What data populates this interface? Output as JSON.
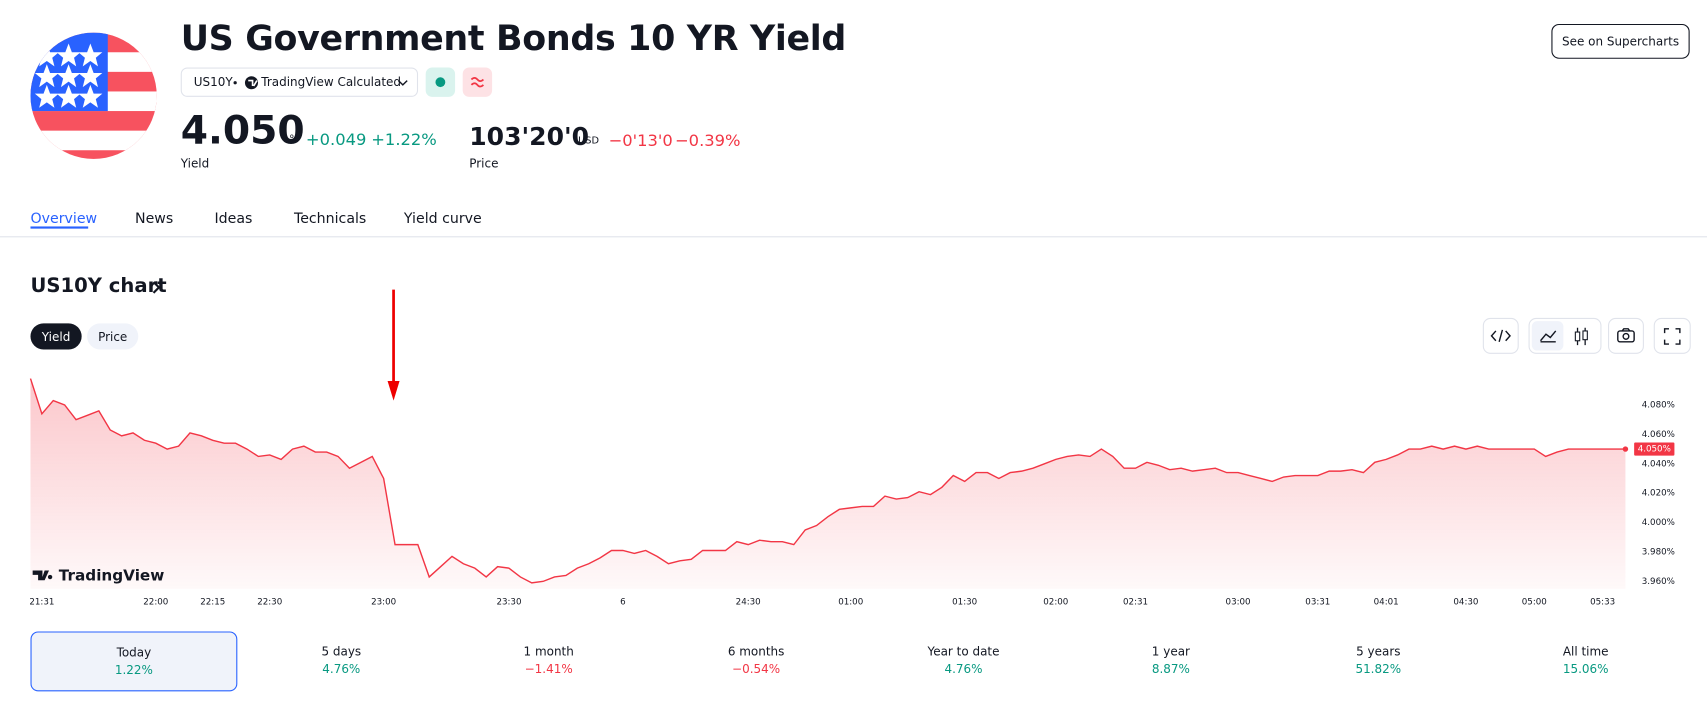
{
  "header": {
    "title": "US Government Bonds 10 YR Yield",
    "symbol": "US10Y",
    "source": "TradingView Calculated",
    "button": "See on Supercharts",
    "yield": {
      "value": "4.050",
      "unit": "%",
      "change": "+0.049",
      "change_pct": "+1.22%",
      "label": "Yield"
    },
    "price": {
      "value": "103'20'0",
      "unit": "USD",
      "change": "−0'13'0",
      "change_pct": "−0.39%",
      "label": "Price"
    }
  },
  "tabs": [
    "Overview",
    "News",
    "Ideas",
    "Technicals",
    "Yield curve"
  ],
  "chart_section": {
    "title": "US10Y chart",
    "toggles": [
      "Yield",
      "Price"
    ]
  },
  "chart_data": {
    "type": "area",
    "color": "#f23645",
    "watermark": "TradingView",
    "current_label": "4.050%",
    "categories": [
      null,
      "21:31",
      null,
      null,
      null,
      null,
      null,
      null,
      null,
      null,
      null,
      "22:00",
      null,
      null,
      null,
      null,
      "22:15",
      null,
      null,
      null,
      null,
      "22:30",
      null,
      null,
      null,
      null,
      null,
      null,
      null,
      null,
      null,
      "23:00",
      null,
      null,
      null,
      null,
      null,
      null,
      null,
      null,
      null,
      null,
      "23:30",
      null,
      null,
      null,
      null,
      null,
      null,
      null,
      null,
      null,
      "6",
      null,
      null,
      null,
      null,
      null,
      null,
      null,
      null,
      null,
      null,
      "24:30",
      null,
      null,
      null,
      null,
      null,
      null,
      null,
      null,
      "01:00",
      null,
      null,
      null,
      null,
      null,
      null,
      null,
      null,
      null,
      "01:30",
      null,
      null,
      null,
      null,
      null,
      null,
      null,
      "02:00",
      null,
      null,
      null,
      null,
      null,
      null,
      "02:31",
      null,
      null,
      null,
      null,
      null,
      null,
      null,
      null,
      "03:00",
      null,
      null,
      null,
      null,
      null,
      null,
      "03:31",
      null,
      null,
      null,
      null,
      null,
      "04:01",
      null,
      null,
      null,
      null,
      null,
      null,
      "04:30",
      null,
      null,
      null,
      null,
      null,
      "05:00",
      null,
      null,
      null,
      null,
      null,
      "05:33",
      null,
      null
    ],
    "values": [
      4.098,
      4.074,
      4.083,
      4.08,
      4.07,
      4.073,
      4.076,
      4.063,
      4.059,
      4.061,
      4.056,
      4.054,
      4.05,
      4.052,
      4.061,
      4.059,
      4.056,
      4.054,
      4.054,
      4.05,
      4.045,
      4.046,
      4.043,
      4.05,
      4.052,
      4.048,
      4.048,
      4.045,
      4.037,
      4.041,
      4.045,
      4.03,
      3.985,
      3.985,
      3.985,
      3.963,
      3.97,
      3.977,
      3.972,
      3.969,
      3.963,
      3.97,
      3.969,
      3.963,
      3.959,
      3.96,
      3.963,
      3.964,
      3.969,
      3.972,
      3.976,
      3.981,
      3.981,
      3.979,
      3.981,
      3.977,
      3.972,
      3.974,
      3.975,
      3.981,
      3.981,
      3.981,
      3.987,
      3.985,
      3.988,
      3.987,
      3.987,
      3.985,
      3.995,
      3.998,
      4.004,
      4.009,
      4.01,
      4.011,
      4.011,
      4.018,
      4.016,
      4.017,
      4.021,
      4.019,
      4.024,
      4.032,
      4.028,
      4.034,
      4.034,
      4.03,
      4.034,
      4.035,
      4.037,
      4.04,
      4.043,
      4.045,
      4.046,
      4.045,
      4.05,
      4.045,
      4.037,
      4.037,
      4.041,
      4.039,
      4.036,
      4.037,
      4.035,
      4.036,
      4.037,
      4.034,
      4.034,
      4.032,
      4.03,
      4.028,
      4.031,
      4.032,
      4.032,
      4.032,
      4.035,
      4.035,
      4.036,
      4.034,
      4.041,
      4.043,
      4.046,
      4.05,
      4.05,
      4.052,
      4.05,
      4.052,
      4.05,
      4.052,
      4.05,
      4.05,
      4.05,
      4.05,
      4.05,
      4.045,
      4.048,
      4.05,
      4.05,
      4.05,
      4.05,
      4.05,
      4.05
    ],
    "ylim": [
      3.955,
      4.1
    ],
    "yticks": [
      {
        "value": 3.96,
        "label": "3.960%"
      },
      {
        "value": 3.98,
        "label": "3.980%"
      },
      {
        "value": 4.0,
        "label": "4.000%"
      },
      {
        "value": 4.02,
        "label": "4.020%"
      },
      {
        "value": 4.04,
        "label": "4.040%"
      },
      {
        "value": 4.06,
        "label": "4.060%"
      },
      {
        "value": 4.08,
        "label": "4.080%"
      }
    ]
  },
  "periods": [
    {
      "label": "Today",
      "change": "1.22%"
    },
    {
      "label": "5 days",
      "change": "4.76%"
    },
    {
      "label": "1 month",
      "change": "−1.41%"
    },
    {
      "label": "6 months",
      "change": "−0.54%"
    },
    {
      "label": "Year to date",
      "change": "4.76%"
    },
    {
      "label": "1 year",
      "change": "8.87%"
    },
    {
      "label": "5 years",
      "change": "51.82%"
    },
    {
      "label": "All time",
      "change": "15.06%"
    }
  ]
}
